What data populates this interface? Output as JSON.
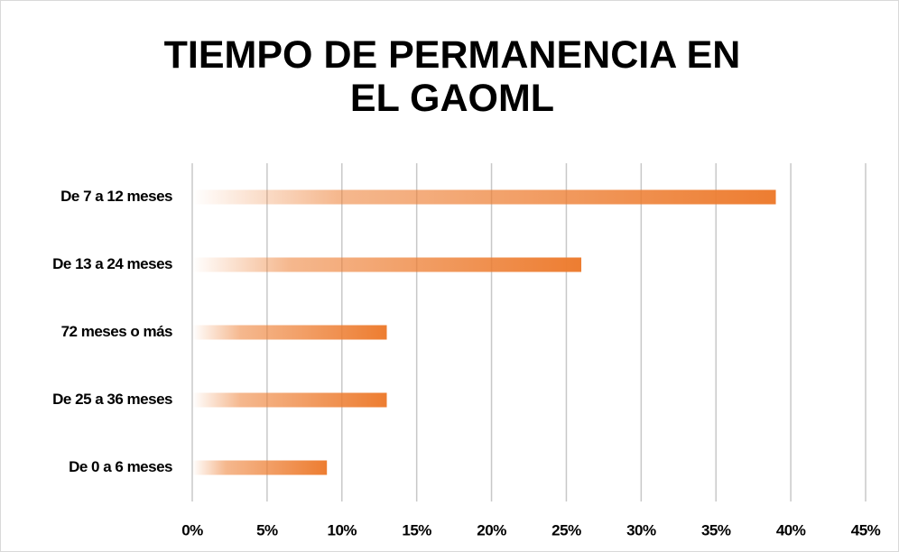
{
  "chart_data": {
    "type": "barh",
    "title": "TIEMPO DE PERMANENCIA EN EL GAOML",
    "categories": [
      "De 7 a 12 meses",
      "De 13 a 24 meses",
      "72 meses o más",
      "De 25 a 36 meses",
      "De 0 a 6 meses"
    ],
    "values": [
      39,
      26,
      13,
      13,
      9
    ],
    "color": "#ed7d31",
    "xlim": [
      0,
      45
    ],
    "xticks": [
      {
        "value": 0,
        "label": "0%"
      },
      {
        "value": 5,
        "label": "5%"
      },
      {
        "value": 10,
        "label": "10%"
      },
      {
        "value": 15,
        "label": "15%"
      },
      {
        "value": 20,
        "label": "20%"
      },
      {
        "value": 25,
        "label": "25%"
      },
      {
        "value": 30,
        "label": "30%"
      },
      {
        "value": 35,
        "label": "35%"
      },
      {
        "value": 40,
        "label": "40%"
      },
      {
        "value": 45,
        "label": "45%"
      }
    ],
    "grid": true
  }
}
